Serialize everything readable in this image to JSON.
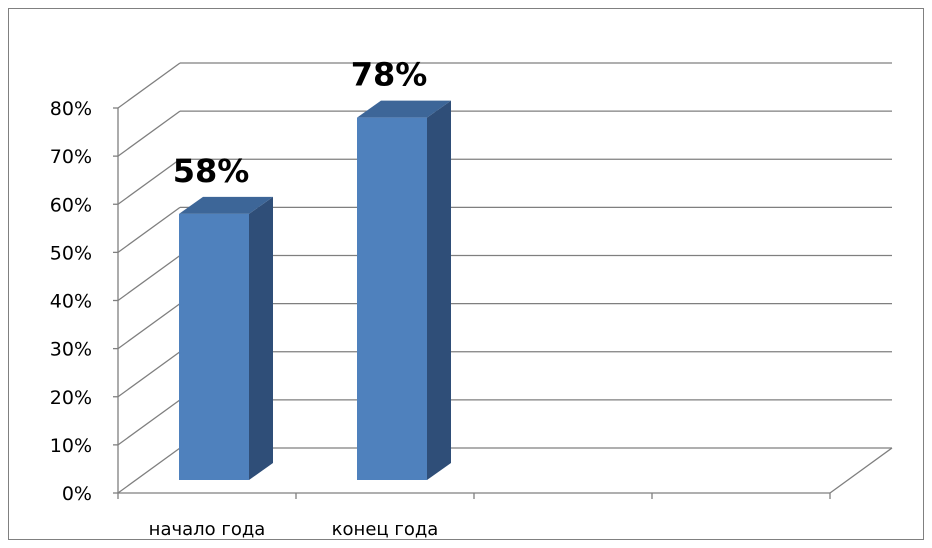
{
  "chart_data": {
    "type": "bar",
    "style": "3d-column",
    "categories": [
      "начало года",
      "конец года"
    ],
    "values": [
      58,
      78
    ],
    "data_labels": [
      "58%",
      "78%"
    ],
    "slots": 4,
    "ylim": [
      0,
      80
    ],
    "yticks": [
      "0%",
      "10%",
      "20%",
      "30%",
      "40%",
      "50%",
      "60%",
      "70%",
      "80%"
    ],
    "grid": true,
    "legend": "none",
    "colors": {
      "bar_front": "#4F81BD",
      "bar_side": "#2F4E78",
      "bar_top": "#3D6698",
      "grid": "#7F7F7F",
      "border": "#7F7F7F"
    }
  }
}
